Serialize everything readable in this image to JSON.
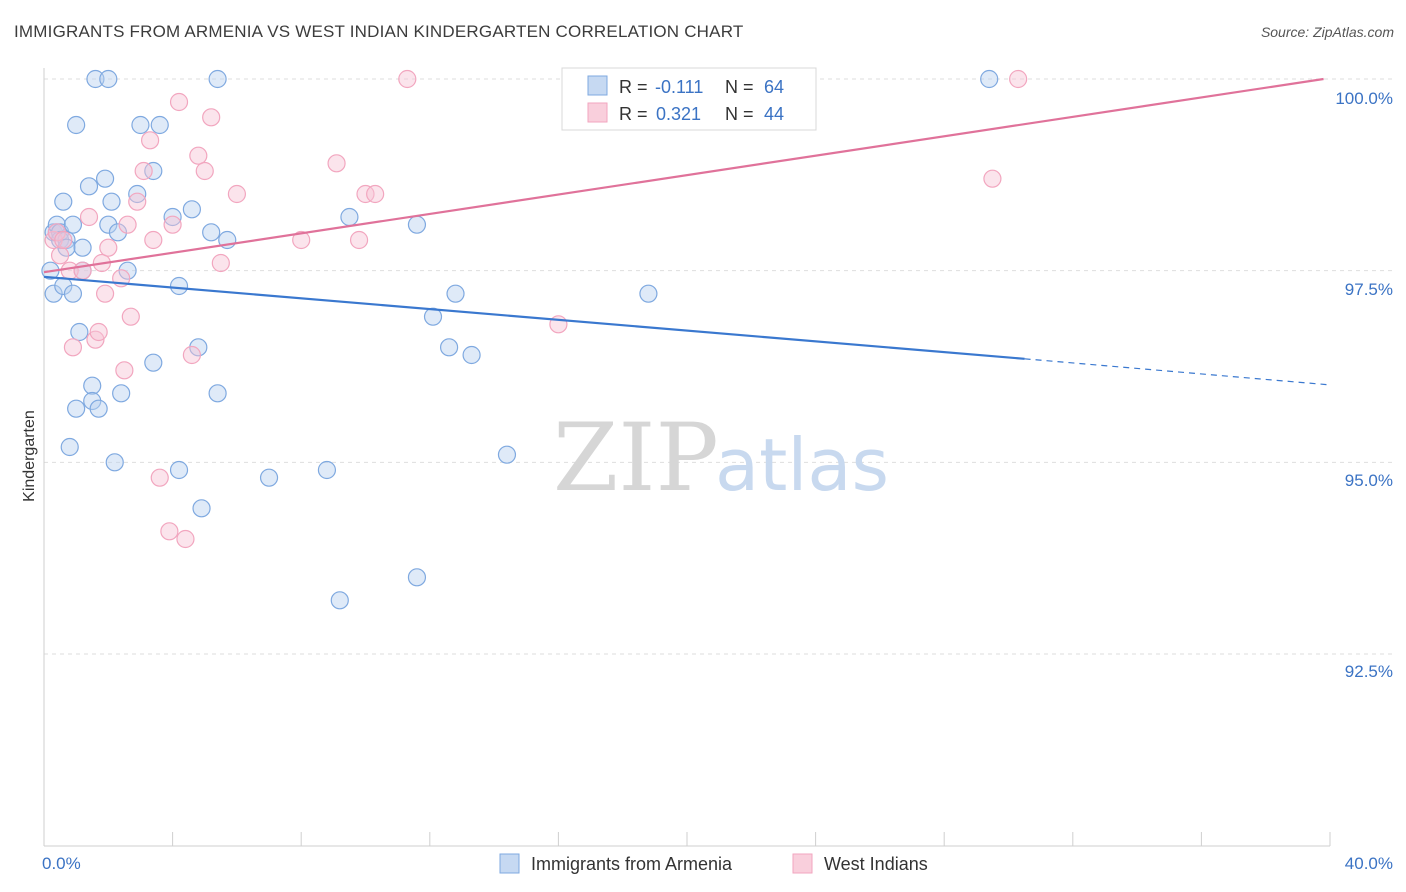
{
  "header": {
    "title": "IMMIGRANTS FROM ARMENIA VS WEST INDIAN KINDERGARTEN CORRELATION CHART",
    "source": "Source: ZipAtlas.com"
  },
  "watermark": {
    "zip": "ZIP",
    "atlas": "atlas"
  },
  "legend": {
    "rows": [
      {
        "r_label": "R = ",
        "r_value": "-0.111",
        "n_label": "N = ",
        "n_value": "64"
      },
      {
        "r_label": "R = ",
        "r_value": "0.321",
        "n_label": "N = ",
        "n_value": "44"
      }
    ]
  },
  "chart_data": {
    "type": "scatter",
    "title": "IMMIGRANTS FROM ARMENIA VS WEST INDIAN KINDERGARTEN CORRELATION CHART",
    "xlabel": "",
    "ylabel": "Kindergarten",
    "xlim": [
      0,
      40
    ],
    "ylim": [
      90.2,
      100.3
    ],
    "x_tick_labels": [
      "0.0%",
      "40.0%"
    ],
    "y_ticks": [
      92.5,
      95.0,
      97.5,
      100.0
    ],
    "y_tick_labels": [
      "92.5%",
      "95.0%",
      "97.5%",
      "100.0%"
    ],
    "grid": true,
    "colors": {
      "blue": "#7fa9e0",
      "blue_line": "#3a78cf",
      "pink": "#f2a6bf",
      "pink_line": "#e0729a"
    },
    "series": [
      {
        "name": "Immigrants from Armenia",
        "color": "#7fa9e0",
        "trend": {
          "x0": 0.0,
          "y0": 97.42,
          "x1": 30.5,
          "y1": 96.35,
          "dash_x1": 40.0,
          "dash_y1": 96.01
        },
        "points": [
          [
            0.2,
            97.5
          ],
          [
            0.3,
            97.2
          ],
          [
            0.3,
            98.0
          ],
          [
            0.4,
            98.0
          ],
          [
            0.4,
            98.1
          ],
          [
            0.5,
            98.0
          ],
          [
            0.5,
            97.9
          ],
          [
            0.6,
            97.3
          ],
          [
            0.6,
            98.4
          ],
          [
            0.7,
            97.9
          ],
          [
            0.7,
            97.8
          ],
          [
            0.8,
            95.2
          ],
          [
            0.9,
            98.1
          ],
          [
            0.9,
            97.2
          ],
          [
            1.0,
            99.4
          ],
          [
            1.0,
            95.7
          ],
          [
            1.1,
            96.7
          ],
          [
            1.2,
            97.8
          ],
          [
            1.2,
            97.5
          ],
          [
            1.4,
            98.6
          ],
          [
            1.5,
            96.0
          ],
          [
            1.5,
            95.8
          ],
          [
            1.6,
            100.0
          ],
          [
            1.7,
            95.7
          ],
          [
            1.9,
            98.7
          ],
          [
            2.0,
            100.0
          ],
          [
            2.0,
            98.1
          ],
          [
            2.1,
            98.4
          ],
          [
            2.2,
            95.0
          ],
          [
            2.3,
            98.0
          ],
          [
            2.4,
            95.9
          ],
          [
            2.6,
            97.5
          ],
          [
            2.9,
            98.5
          ],
          [
            3.0,
            99.4
          ],
          [
            3.4,
            98.8
          ],
          [
            3.4,
            96.3
          ],
          [
            3.6,
            99.4
          ],
          [
            4.0,
            98.2
          ],
          [
            4.2,
            97.3
          ],
          [
            4.2,
            94.9
          ],
          [
            4.6,
            98.3
          ],
          [
            4.8,
            96.5
          ],
          [
            4.9,
            94.4
          ],
          [
            5.2,
            98.0
          ],
          [
            5.4,
            100.0
          ],
          [
            5.4,
            95.9
          ],
          [
            5.7,
            97.9
          ],
          [
            7.0,
            94.8
          ],
          [
            8.8,
            94.9
          ],
          [
            9.2,
            93.2
          ],
          [
            9.5,
            98.2
          ],
          [
            11.6,
            93.5
          ],
          [
            11.6,
            98.1
          ],
          [
            12.1,
            96.9
          ],
          [
            12.6,
            96.5
          ],
          [
            12.8,
            97.2
          ],
          [
            13.3,
            96.4
          ],
          [
            14.4,
            95.1
          ],
          [
            18.8,
            97.2
          ],
          [
            29.4,
            100.0
          ]
        ]
      },
      {
        "name": "West Indians",
        "color": "#f2a6bf",
        "trend": {
          "x0": 0.0,
          "y0": 97.48,
          "x1": 39.8,
          "y1": 100.0
        },
        "points": [
          [
            0.3,
            97.9
          ],
          [
            0.4,
            98.0
          ],
          [
            0.5,
            97.7
          ],
          [
            0.6,
            97.9
          ],
          [
            0.8,
            97.5
          ],
          [
            0.9,
            96.5
          ],
          [
            1.2,
            97.5
          ],
          [
            1.4,
            98.2
          ],
          [
            1.6,
            96.6
          ],
          [
            1.7,
            96.7
          ],
          [
            1.8,
            97.6
          ],
          [
            1.9,
            97.2
          ],
          [
            2.0,
            97.8
          ],
          [
            2.4,
            97.4
          ],
          [
            2.5,
            96.2
          ],
          [
            2.6,
            98.1
          ],
          [
            2.7,
            96.9
          ],
          [
            2.9,
            98.4
          ],
          [
            3.1,
            98.8
          ],
          [
            3.3,
            99.2
          ],
          [
            3.4,
            97.9
          ],
          [
            3.6,
            94.8
          ],
          [
            3.9,
            94.1
          ],
          [
            4.0,
            98.1
          ],
          [
            4.2,
            99.7
          ],
          [
            4.4,
            94.0
          ],
          [
            4.6,
            96.4
          ],
          [
            4.8,
            99.0
          ],
          [
            5.0,
            98.8
          ],
          [
            5.2,
            99.5
          ],
          [
            5.5,
            97.6
          ],
          [
            6.0,
            98.5
          ],
          [
            8.0,
            97.9
          ],
          [
            9.1,
            98.9
          ],
          [
            9.8,
            97.9
          ],
          [
            10.0,
            98.5
          ],
          [
            10.3,
            98.5
          ],
          [
            11.3,
            100.0
          ],
          [
            16.0,
            96.8
          ],
          [
            29.5,
            98.7
          ],
          [
            30.3,
            100.0
          ]
        ]
      }
    ]
  },
  "bottom_legend": {
    "items": [
      {
        "label": "Immigrants from Armenia"
      },
      {
        "label": "West Indians"
      }
    ]
  }
}
